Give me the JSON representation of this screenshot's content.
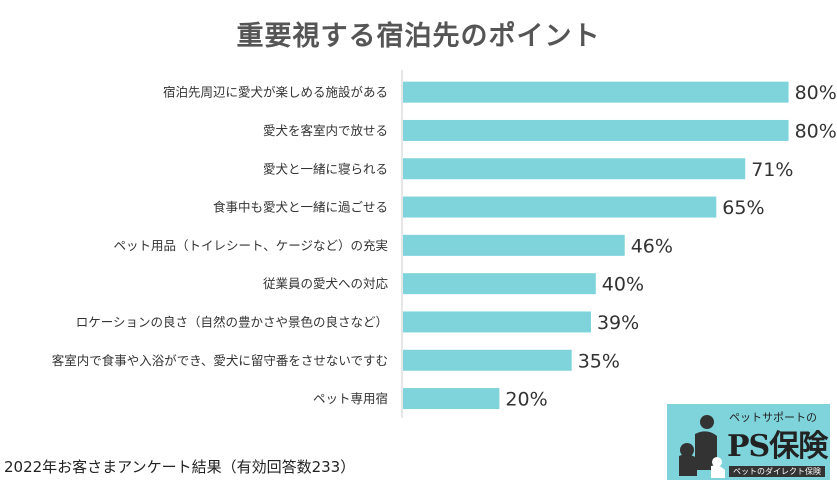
{
  "title": "重要視する宿泊先のポイント",
  "footnote": "2022年お客さまアンケート結果（有効回答数233）",
  "logo": {
    "tagline": "ペットサポートの",
    "brand": "PS保険",
    "sub": "ペットのダイレクト保険"
  },
  "colors": {
    "bar": "#7fd4dc",
    "axis": "#cccccc",
    "label": "#333333",
    "value": "#333333"
  },
  "chart_data": {
    "type": "bar",
    "orientation": "horizontal",
    "categories": [
      "宿泊先周辺に愛犬が楽しめる施設がある",
      "愛犬を客室内で放せる",
      "愛犬と一緒に寝られる",
      "食事中も愛犬と一緒に過ごせる",
      "ペット用品（トイレシート、ケージなど）の充実",
      "従業員の愛犬への対応",
      "ロケーションの良さ（自然の豊かさや景色の良さなど）",
      "客室内で食事や入浴ができ、愛犬に留守番をさせないですむ",
      "ペット専用宿"
    ],
    "values": [
      80,
      80,
      71,
      65,
      46,
      40,
      39,
      35,
      20
    ],
    "value_labels": [
      "80%",
      "80%",
      "71%",
      "65%",
      "46%",
      "40%",
      "39%",
      "35%",
      "20%"
    ],
    "xlim": [
      0,
      100
    ],
    "grid": false
  }
}
